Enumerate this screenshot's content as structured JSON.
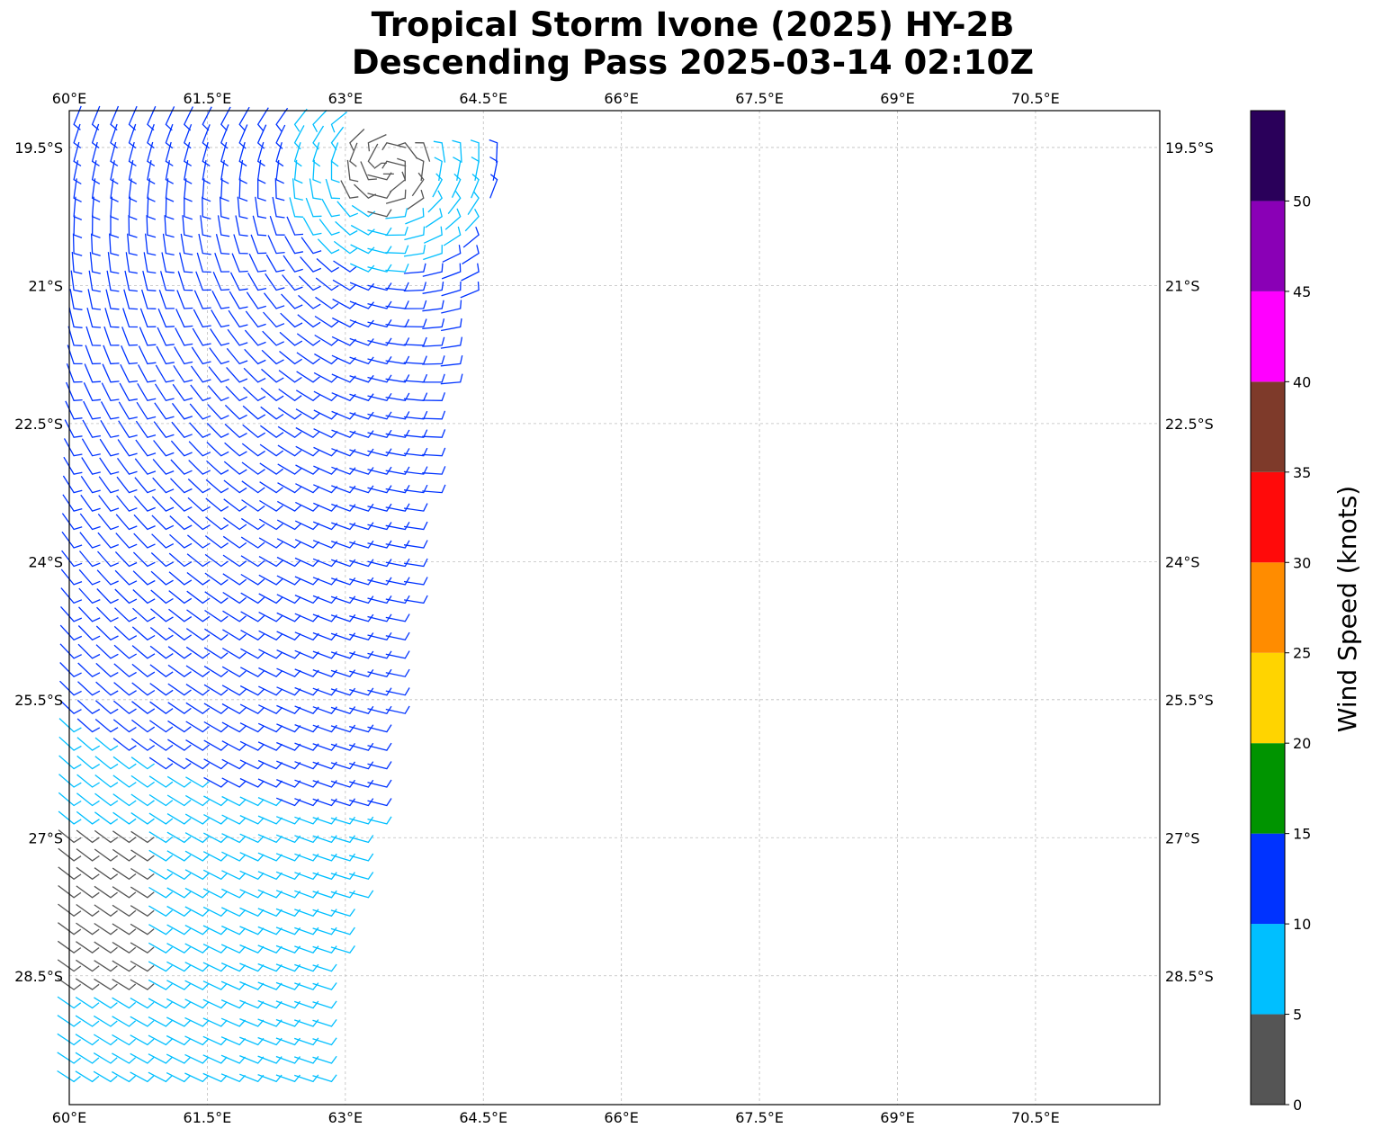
{
  "title": {
    "line1": "Tropical Storm Ivone (2025) HY-2B",
    "line2": "Descending Pass 2025-03-14 02:10Z"
  },
  "map": {
    "lon_range": [
      60.0,
      71.85
    ],
    "lat_range": [
      -29.9,
      -19.1
    ],
    "gridlines": true,
    "lon_ticks": [
      60,
      61.5,
      63,
      64.5,
      66,
      67.5,
      69,
      70.5
    ],
    "lon_tick_labels": [
      "60°E",
      "61.5°E",
      "63°E",
      "64.5°E",
      "66°E",
      "67.5°E",
      "69°E",
      "70.5°E"
    ],
    "lat_ticks": [
      -19.5,
      -21,
      -22.5,
      -24,
      -25.5,
      -27,
      -28.5
    ],
    "lat_tick_labels": [
      "19.5°S",
      "21°S",
      "22.5°S",
      "24°S",
      "25.5°S",
      "27°S",
      "28.5°S"
    ],
    "swath_east_edge": [
      [
        -19.3,
        64.75
      ],
      [
        -21.0,
        64.5
      ],
      [
        -22.5,
        64.2
      ],
      [
        -24.0,
        63.95
      ],
      [
        -25.5,
        63.7
      ],
      [
        -27.0,
        63.45
      ],
      [
        -28.5,
        63.0
      ],
      [
        -29.9,
        62.95
      ]
    ],
    "swath_west_edge": [
      [
        -19.1,
        60.0
      ],
      [
        -29.9,
        60.0
      ]
    ],
    "storm_center": [
      -19.7,
      63.45
    ],
    "wind_field_description": "cyclonic circulation around a centre near the swath northeast edge"
  },
  "colorbar": {
    "label": "Wind Speed (knots)",
    "bounds": [
      0,
      5,
      10,
      15,
      20,
      25,
      30,
      35,
      40,
      45,
      50,
      55
    ],
    "tick_labels": [
      "0",
      "5",
      "10",
      "15",
      "20",
      "25",
      "30",
      "35",
      "40",
      "45",
      "50"
    ],
    "colors": [
      "#555555",
      "#00bfff",
      "#0033ff",
      "#009400",
      "#ffd400",
      "#ff8c00",
      "#ff0a0a",
      "#7e3a2a",
      "#ff00ff",
      "#8a00b6",
      "#2a005a"
    ]
  }
}
